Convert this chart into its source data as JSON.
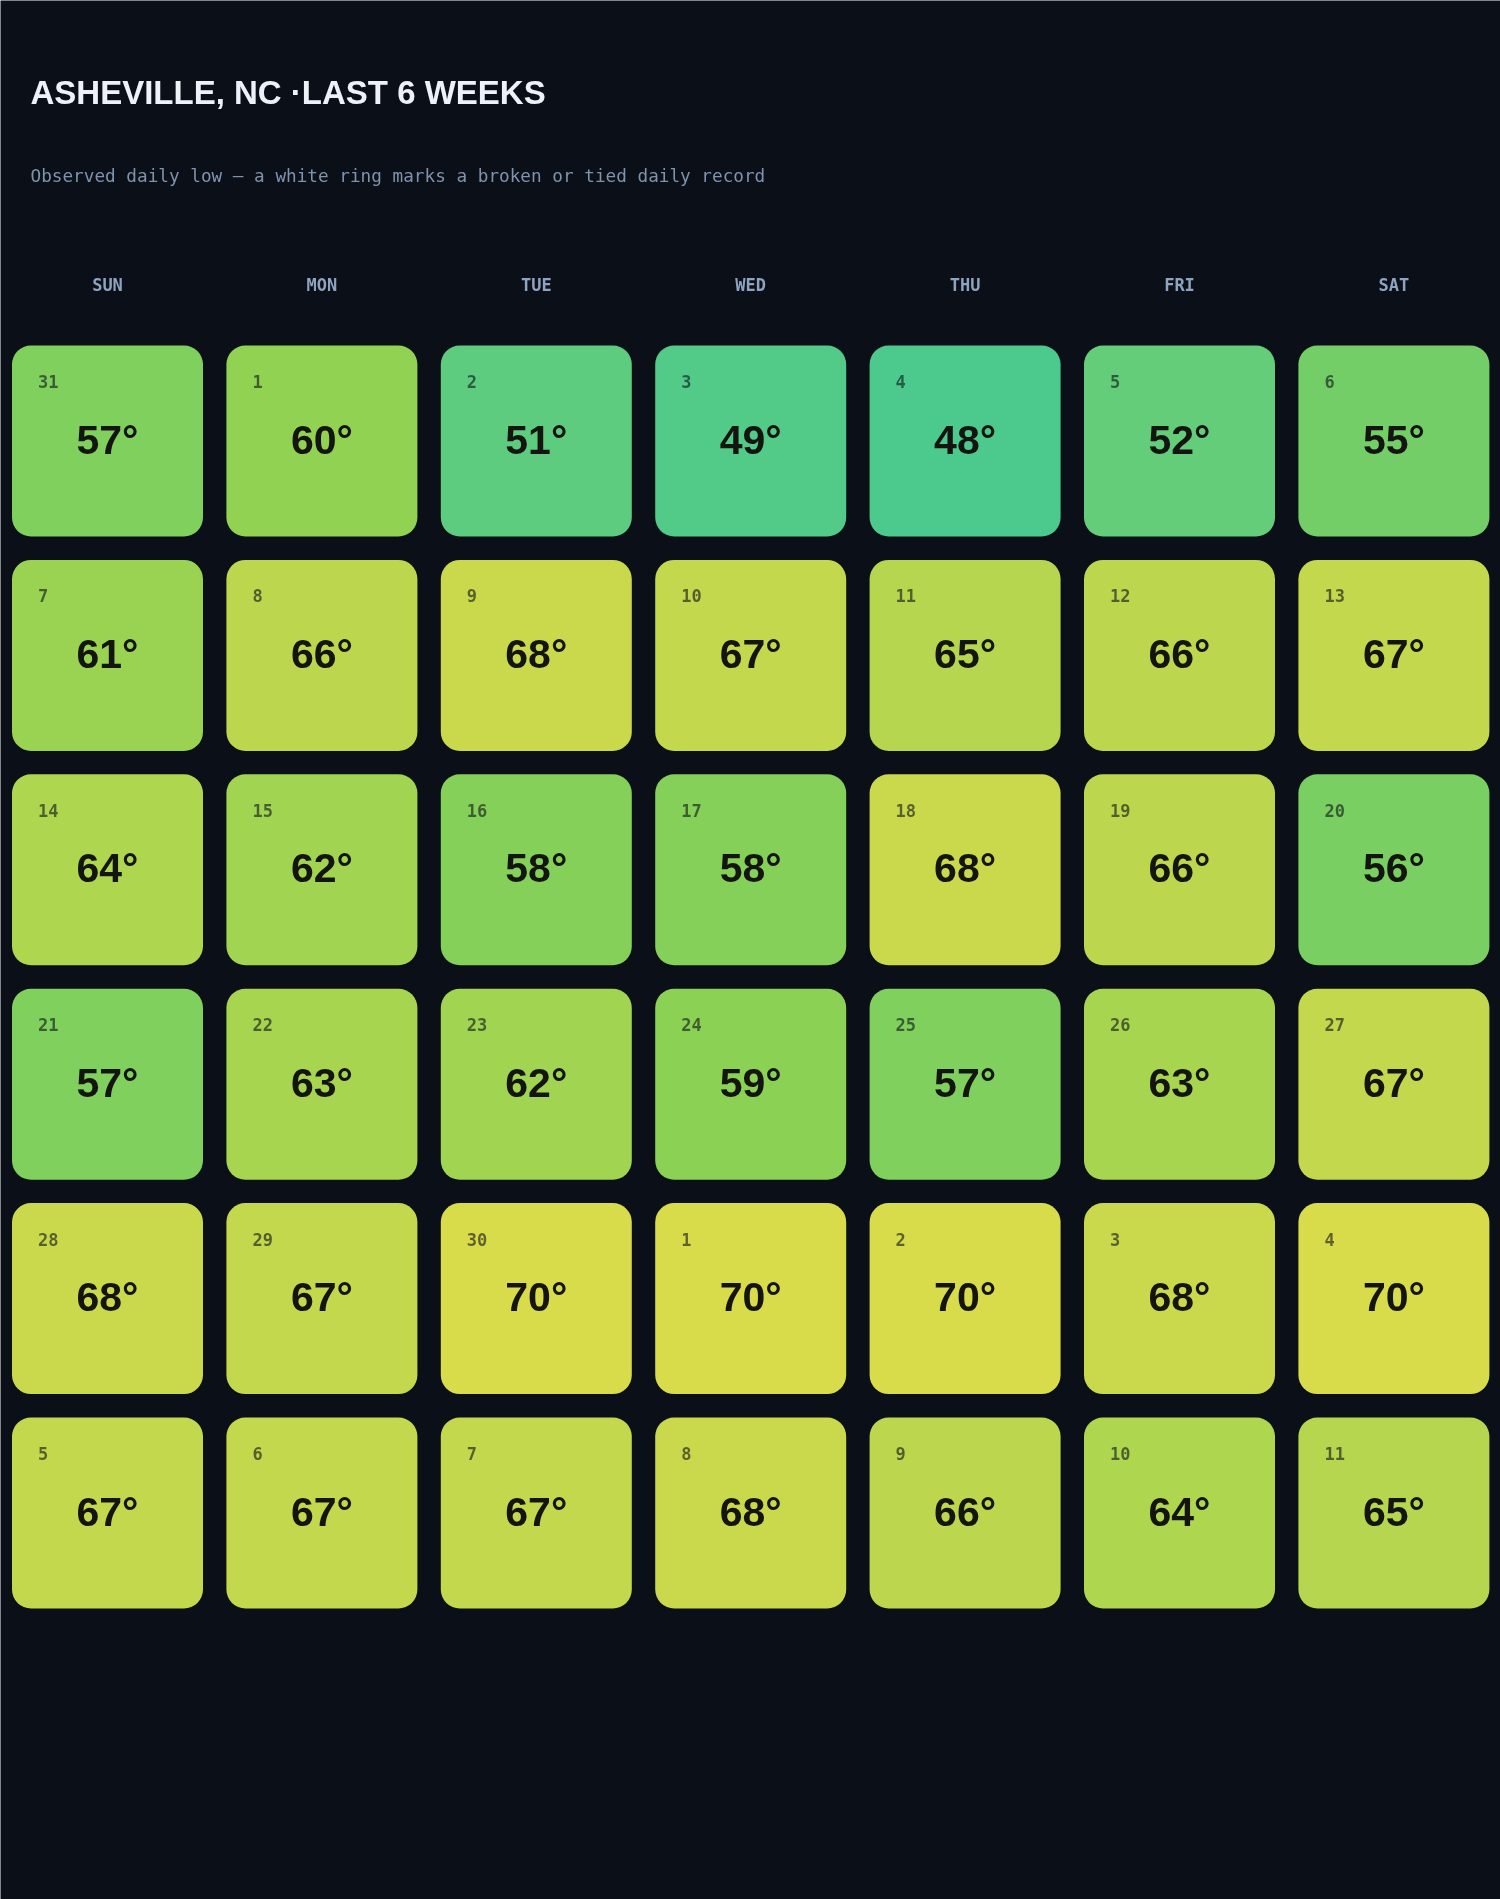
{
  "chart_data": {
    "type": "heatmap",
    "title": "ASHEVILLE, NC ·LAST 6 WEEKS",
    "subtitle": "Observed daily low — a white ring marks a broken or tied daily record",
    "categories": [
      "SUN",
      "MON",
      "TUE",
      "WED",
      "THU",
      "FRI",
      "SAT"
    ],
    "y_categories": [
      null,
      null,
      null,
      null,
      null,
      null
    ],
    "cells": [
      [
        57,
        60,
        51,
        49,
        48,
        52,
        55
      ],
      [
        61,
        66,
        68,
        67,
        65,
        66,
        67
      ],
      [
        64,
        62,
        58,
        58,
        68,
        66,
        56
      ],
      [
        57,
        63,
        62,
        59,
        57,
        63,
        67
      ],
      [
        68,
        67,
        70,
        70,
        70,
        68,
        70
      ],
      [
        67,
        67,
        67,
        68,
        66,
        64,
        65
      ]
    ],
    "cell_labels": [
      [
        "57°",
        "60°",
        "51°",
        "49°",
        "48°",
        "52°",
        "55°"
      ],
      [
        "61°",
        "66°",
        "68°",
        "67°",
        "65°",
        "66°",
        "67°"
      ],
      [
        "64°",
        "62°",
        "58°",
        "58°",
        "68°",
        "66°",
        "56°"
      ],
      [
        "57°",
        "63°",
        "62°",
        "59°",
        "57°",
        "63°",
        "67°"
      ],
      [
        "68°",
        "67°",
        "70°",
        "70°",
        "70°",
        "68°",
        "70°"
      ],
      [
        "67°",
        "67°",
        "67°",
        "68°",
        "66°",
        "64°",
        "65°"
      ]
    ],
    "annotations": [
      "31",
      "1",
      "2",
      "3",
      "4",
      "5",
      "6",
      "7",
      "8",
      "9",
      "10",
      "11",
      "12",
      "13",
      "14",
      "15",
      "16",
      "17",
      "18",
      "19",
      "20",
      "21",
      "22",
      "23",
      "24",
      "25",
      "26",
      "27",
      "28",
      "29",
      "30",
      "1",
      "2",
      "3",
      "4",
      "5",
      "6",
      "7",
      "8",
      "9",
      "10",
      "11"
    ],
    "colors": [
      "#4cca8e",
      "#8bd153",
      "#d8db4a"
    ]
  }
}
